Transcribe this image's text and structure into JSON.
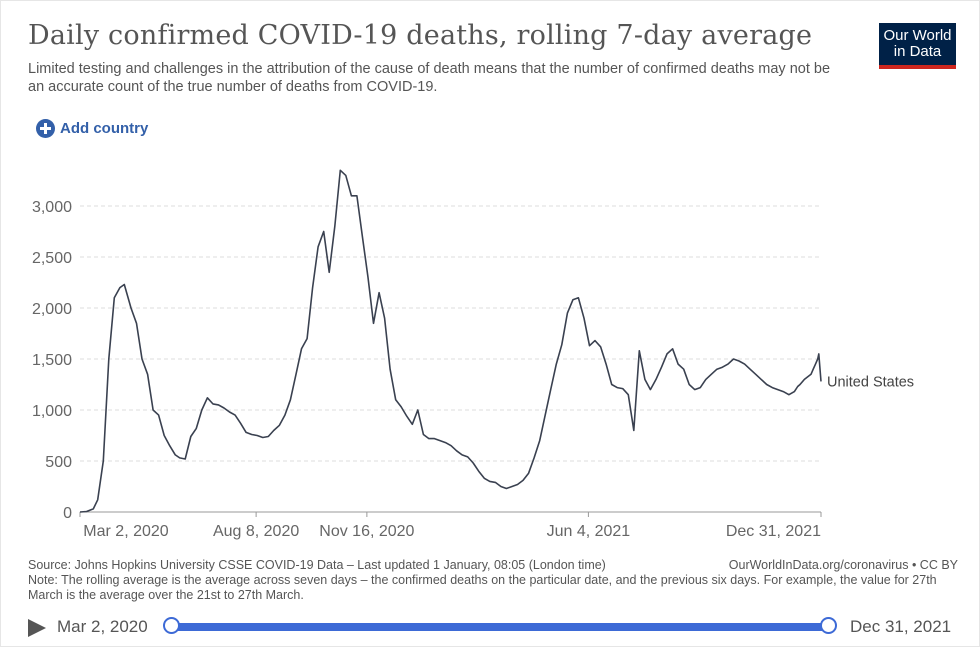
{
  "header": {
    "title": "Daily confirmed COVID-19 deaths, rolling 7-day average",
    "subtitle": "Limited testing and challenges in the attribution of the cause of death means that the number of confirmed deaths may not be an accurate count of the true number of deaths from COVID-19.",
    "logo_line1": "Our World",
    "logo_line2": "in Data"
  },
  "controls": {
    "add_country_label": "Add country"
  },
  "colors": {
    "series": "#3a4150",
    "accent": "#3d6ad6",
    "logo_bg": "#002147",
    "logo_bar": "#ce261e",
    "link": "#3360a9"
  },
  "chart_data": {
    "type": "line",
    "title": "Daily confirmed COVID-19 deaths, rolling 7-day average",
    "xlabel": "",
    "ylabel": "",
    "ylim": [
      0,
      3500
    ],
    "yticks": [
      0,
      500,
      1000,
      1500,
      2000,
      2500,
      3000
    ],
    "ytick_labels": [
      "0",
      "500",
      "1,000",
      "1,500",
      "2,000",
      "2,500",
      "3,000"
    ],
    "xlim_days": [
      0,
      669
    ],
    "xticks_days": [
      0,
      159,
      259,
      459,
      669
    ],
    "xtick_labels": [
      "Mar 2, 2020",
      "Aug 8, 2020",
      "Nov 16, 2020",
      "Jun 4, 2021",
      "Dec 31, 2021"
    ],
    "grid": true,
    "series": [
      {
        "name": "United States",
        "x": [
          0,
          6,
          12,
          16,
          21,
          26,
          31,
          36,
          40,
          46,
          51,
          56,
          61,
          66,
          71,
          76,
          81,
          86,
          90,
          95,
          100,
          105,
          110,
          115,
          120,
          125,
          130,
          135,
          140,
          145,
          150,
          155,
          160,
          165,
          170,
          175,
          180,
          185,
          190,
          195,
          200,
          205,
          210,
          215,
          220,
          225,
          230,
          235,
          240,
          245,
          250,
          255,
          260,
          265,
          270,
          275,
          280,
          285,
          290,
          295,
          300,
          305,
          310,
          315,
          320,
          325,
          330,
          335,
          340,
          345,
          350,
          355,
          360,
          365,
          370,
          375,
          380,
          385,
          390,
          395,
          400,
          405,
          410,
          415,
          420,
          425,
          430,
          435,
          440,
          445,
          450,
          455,
          460,
          465,
          470,
          475,
          480,
          485,
          490,
          495,
          500,
          505,
          510,
          515,
          520,
          525,
          530,
          535,
          540,
          545,
          550,
          555,
          560,
          565,
          570,
          575,
          580,
          585,
          590,
          595,
          600,
          605,
          610,
          615,
          620,
          625,
          630,
          635,
          640,
          645,
          648,
          650,
          654,
          660,
          662,
          664,
          666,
          667,
          669
        ],
        "values": [
          0,
          5,
          30,
          120,
          500,
          1500,
          2100,
          2200,
          2230,
          2000,
          1850,
          1500,
          1350,
          1000,
          950,
          750,
          650,
          560,
          530,
          520,
          740,
          820,
          1000,
          1120,
          1060,
          1050,
          1020,
          980,
          950,
          870,
          780,
          760,
          750,
          730,
          740,
          800,
          850,
          950,
          1100,
          1350,
          1600,
          1700,
          2200,
          2600,
          2750,
          2350,
          2800,
          3350,
          3300,
          3100,
          3100,
          2700,
          2300,
          1850,
          2150,
          1900,
          1400,
          1100,
          1030,
          940,
          860,
          1000,
          760,
          720,
          720,
          700,
          680,
          650,
          600,
          560,
          540,
          480,
          400,
          330,
          300,
          290,
          250,
          230,
          250,
          270,
          310,
          380,
          530,
          700,
          950,
          1200,
          1450,
          1640,
          1950,
          2080,
          2100,
          1900,
          1630,
          1680,
          1620,
          1450,
          1250,
          1220,
          1210,
          1150,
          800,
          1580,
          1300,
          1200,
          1300,
          1420,
          1550,
          1600,
          1450,
          1400,
          1250,
          1200,
          1220,
          1300,
          1350,
          1400,
          1420,
          1450,
          1500,
          1480,
          1450,
          1400,
          1350,
          1300,
          1250,
          1220,
          1200,
          1180,
          1150,
          1180,
          1230,
          1250,
          1300,
          1350,
          1400,
          1450,
          1500,
          1550,
          1280
        ]
      }
    ]
  },
  "footer": {
    "source": "Source: Johns Hopkins University CSSE COVID-19 Data – Last updated 1 January, 08:05 (London time)",
    "site": "OurWorldInData.org/coronavirus • CC BY",
    "note": "Note: The rolling average is the average across seven days – the confirmed deaths on the particular date, and the previous six days. For example, the value for 27th March is the average over the 21st to 27th March."
  },
  "timeline": {
    "start_label": "Mar 2, 2020",
    "end_label": "Dec 31, 2021"
  }
}
